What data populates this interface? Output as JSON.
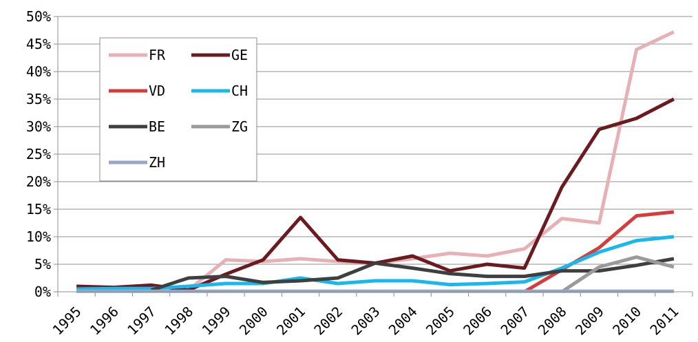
{
  "chart_data": {
    "type": "line",
    "x": [
      "1995",
      "1996",
      "1997",
      "1998",
      "1999",
      "2000",
      "2001",
      "2002",
      "2003",
      "2004",
      "2005",
      "2006",
      "2007",
      "2008",
      "2009",
      "2010",
      "2011"
    ],
    "ylim": [
      0,
      50
    ],
    "y_ticks": [
      "0%",
      "5%",
      "10%",
      "15%",
      "20%",
      "25%",
      "30%",
      "35%",
      "40%",
      "45%",
      "50%"
    ],
    "grid": "horizontal",
    "legend_position": "top-left inside plot",
    "series": [
      {
        "name": "FR",
        "color": "#e6b0b4",
        "values": [
          null,
          null,
          null,
          0.3,
          5.8,
          5.5,
          6.0,
          5.5,
          5.2,
          6.0,
          7.0,
          6.5,
          7.8,
          13.3,
          12.5,
          44.0,
          47.2
        ]
      },
      {
        "name": "GE",
        "color": "#6b1a1f",
        "values": [
          1.0,
          0.8,
          1.2,
          0.3,
          3.2,
          5.8,
          13.5,
          5.8,
          5.2,
          6.5,
          3.8,
          5.0,
          4.3,
          19.0,
          29.5,
          31.5,
          35.0
        ]
      },
      {
        "name": "VD",
        "color": "#d63c3c",
        "values": [
          null,
          null,
          null,
          null,
          null,
          null,
          null,
          null,
          null,
          null,
          null,
          null,
          0.0,
          4.0,
          8.0,
          13.8,
          14.5
        ]
      },
      {
        "name": "CH",
        "color": "#18b8ee",
        "values": [
          0.5,
          0.6,
          0.6,
          1.0,
          1.5,
          1.5,
          2.5,
          1.5,
          2.0,
          2.0,
          1.3,
          1.5,
          1.8,
          4.3,
          7.2,
          9.3,
          10.0
        ]
      },
      {
        "name": "BE",
        "color": "#3f3f3f",
        "values": [
          null,
          null,
          0.3,
          2.5,
          2.8,
          1.7,
          2.0,
          2.5,
          5.2,
          4.3,
          3.3,
          2.8,
          2.8,
          3.8,
          3.8,
          4.8,
          6.0
        ]
      },
      {
        "name": "ZG",
        "color": "#9a9a9a",
        "values": [
          null,
          null,
          null,
          null,
          null,
          null,
          null,
          null,
          null,
          null,
          null,
          null,
          null,
          0.0,
          4.5,
          6.3,
          4.5
        ]
      },
      {
        "name": "ZH",
        "color": "#95a8c4",
        "values": [
          0.1,
          0.1,
          0.1,
          0.1,
          0.1,
          0.1,
          0.1,
          0.1,
          0.1,
          0.1,
          0.1,
          0.1,
          0.1,
          0.1,
          0.1,
          0.1,
          0.1
        ]
      }
    ]
  }
}
